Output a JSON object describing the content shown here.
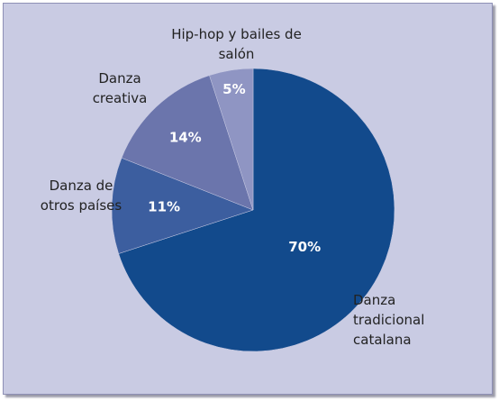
{
  "chart_data": {
    "type": "pie",
    "categories": [
      "Danza tradicional catalana",
      "Danza de otros países",
      "Danza creativa",
      "Hip-hop y bailes de salón"
    ],
    "values": [
      70,
      11,
      14,
      5
    ],
    "value_labels": [
      "70%",
      "11%",
      "14%",
      "5%"
    ],
    "colors": [
      "#124a8c",
      "#3c5e9f",
      "#6b75ac",
      "#8f95c3"
    ]
  }
}
